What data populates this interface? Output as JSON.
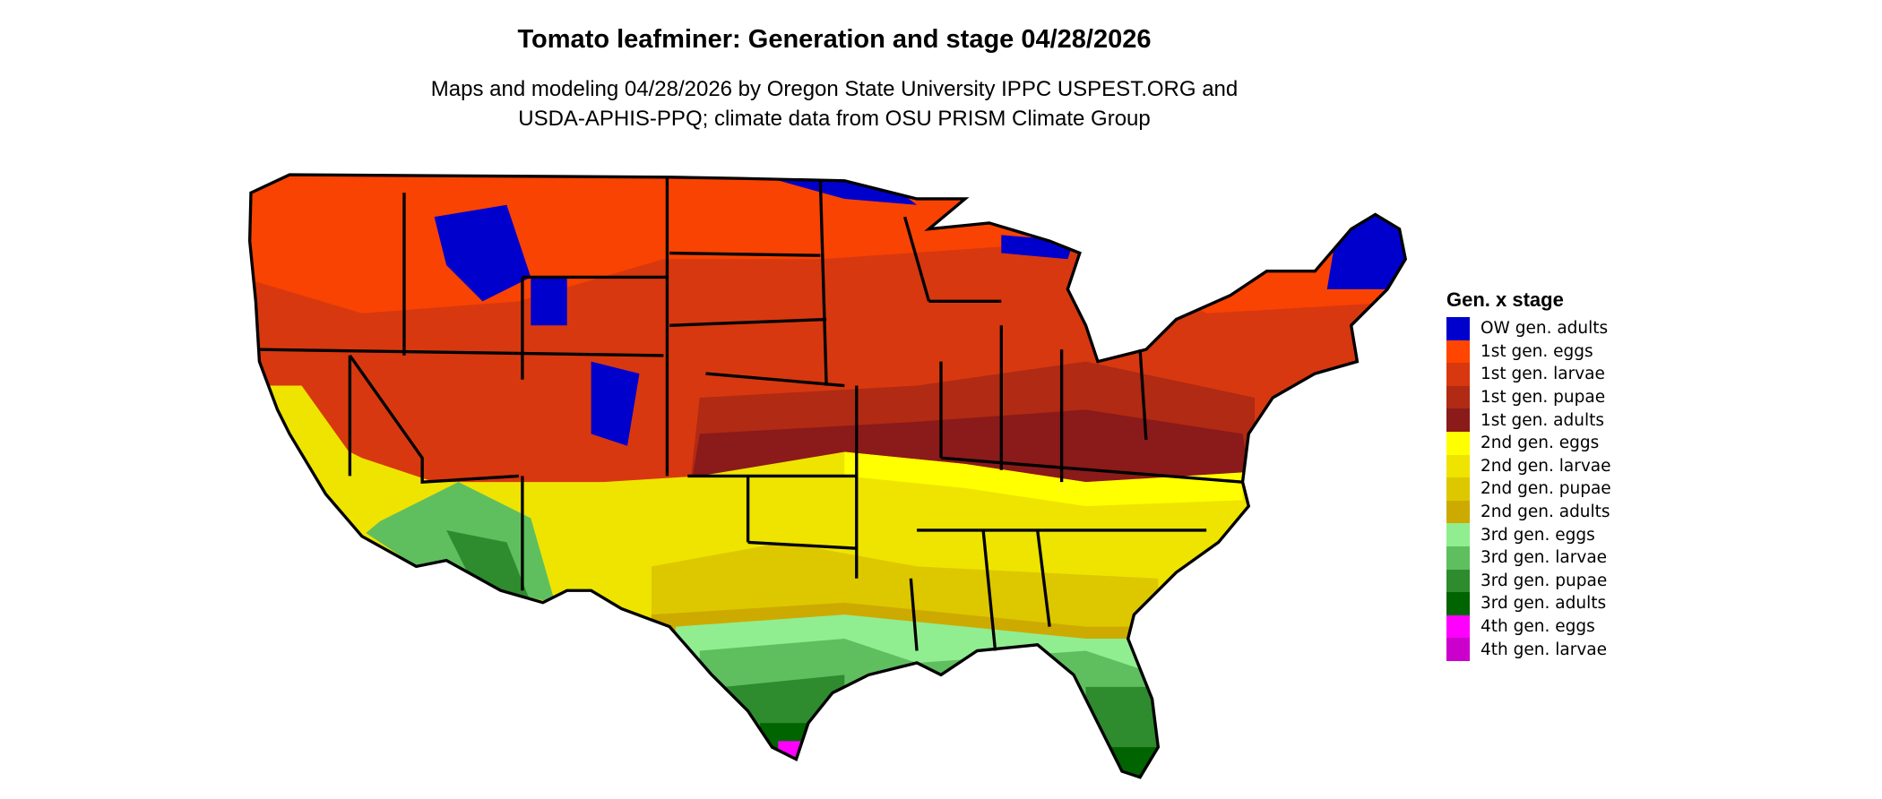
{
  "title": "Tomato leafminer: Generation and stage 04/28/2026",
  "subtitle_line1": "Maps and modeling 04/28/2026 by Oregon State University IPPC USPEST.ORG and",
  "subtitle_line2": "USDA-APHIS-PPQ; climate data from OSU PRISM Climate Group",
  "legend": {
    "title": "Gen. x stage",
    "items": [
      {
        "label": "OW gen. adults",
        "color": "#0000cd"
      },
      {
        "label": "1st gen. eggs",
        "color": "#ff4500"
      },
      {
        "label": "1st gen. larvae",
        "color": "#d8380f"
      },
      {
        "label": "1st gen. pupae",
        "color": "#b02a14"
      },
      {
        "label": "1st gen. adults",
        "color": "#8b1a1a"
      },
      {
        "label": "2nd gen. eggs",
        "color": "#ffff00"
      },
      {
        "label": "2nd gen. larvae",
        "color": "#eee400"
      },
      {
        "label": "2nd gen. pupae",
        "color": "#ddc800"
      },
      {
        "label": "2nd gen. adults",
        "color": "#cdaa00"
      },
      {
        "label": "3rd gen. eggs",
        "color": "#90ee90"
      },
      {
        "label": "3rd gen. larvae",
        "color": "#5fbf5f"
      },
      {
        "label": "3rd gen. pupae",
        "color": "#2e8b2e"
      },
      {
        "label": "3rd gen. adults",
        "color": "#006400"
      },
      {
        "label": "4th gen. eggs",
        "color": "#ff00ff"
      },
      {
        "label": "4th gen. larvae",
        "color": "#cc00cc"
      }
    ]
  }
}
